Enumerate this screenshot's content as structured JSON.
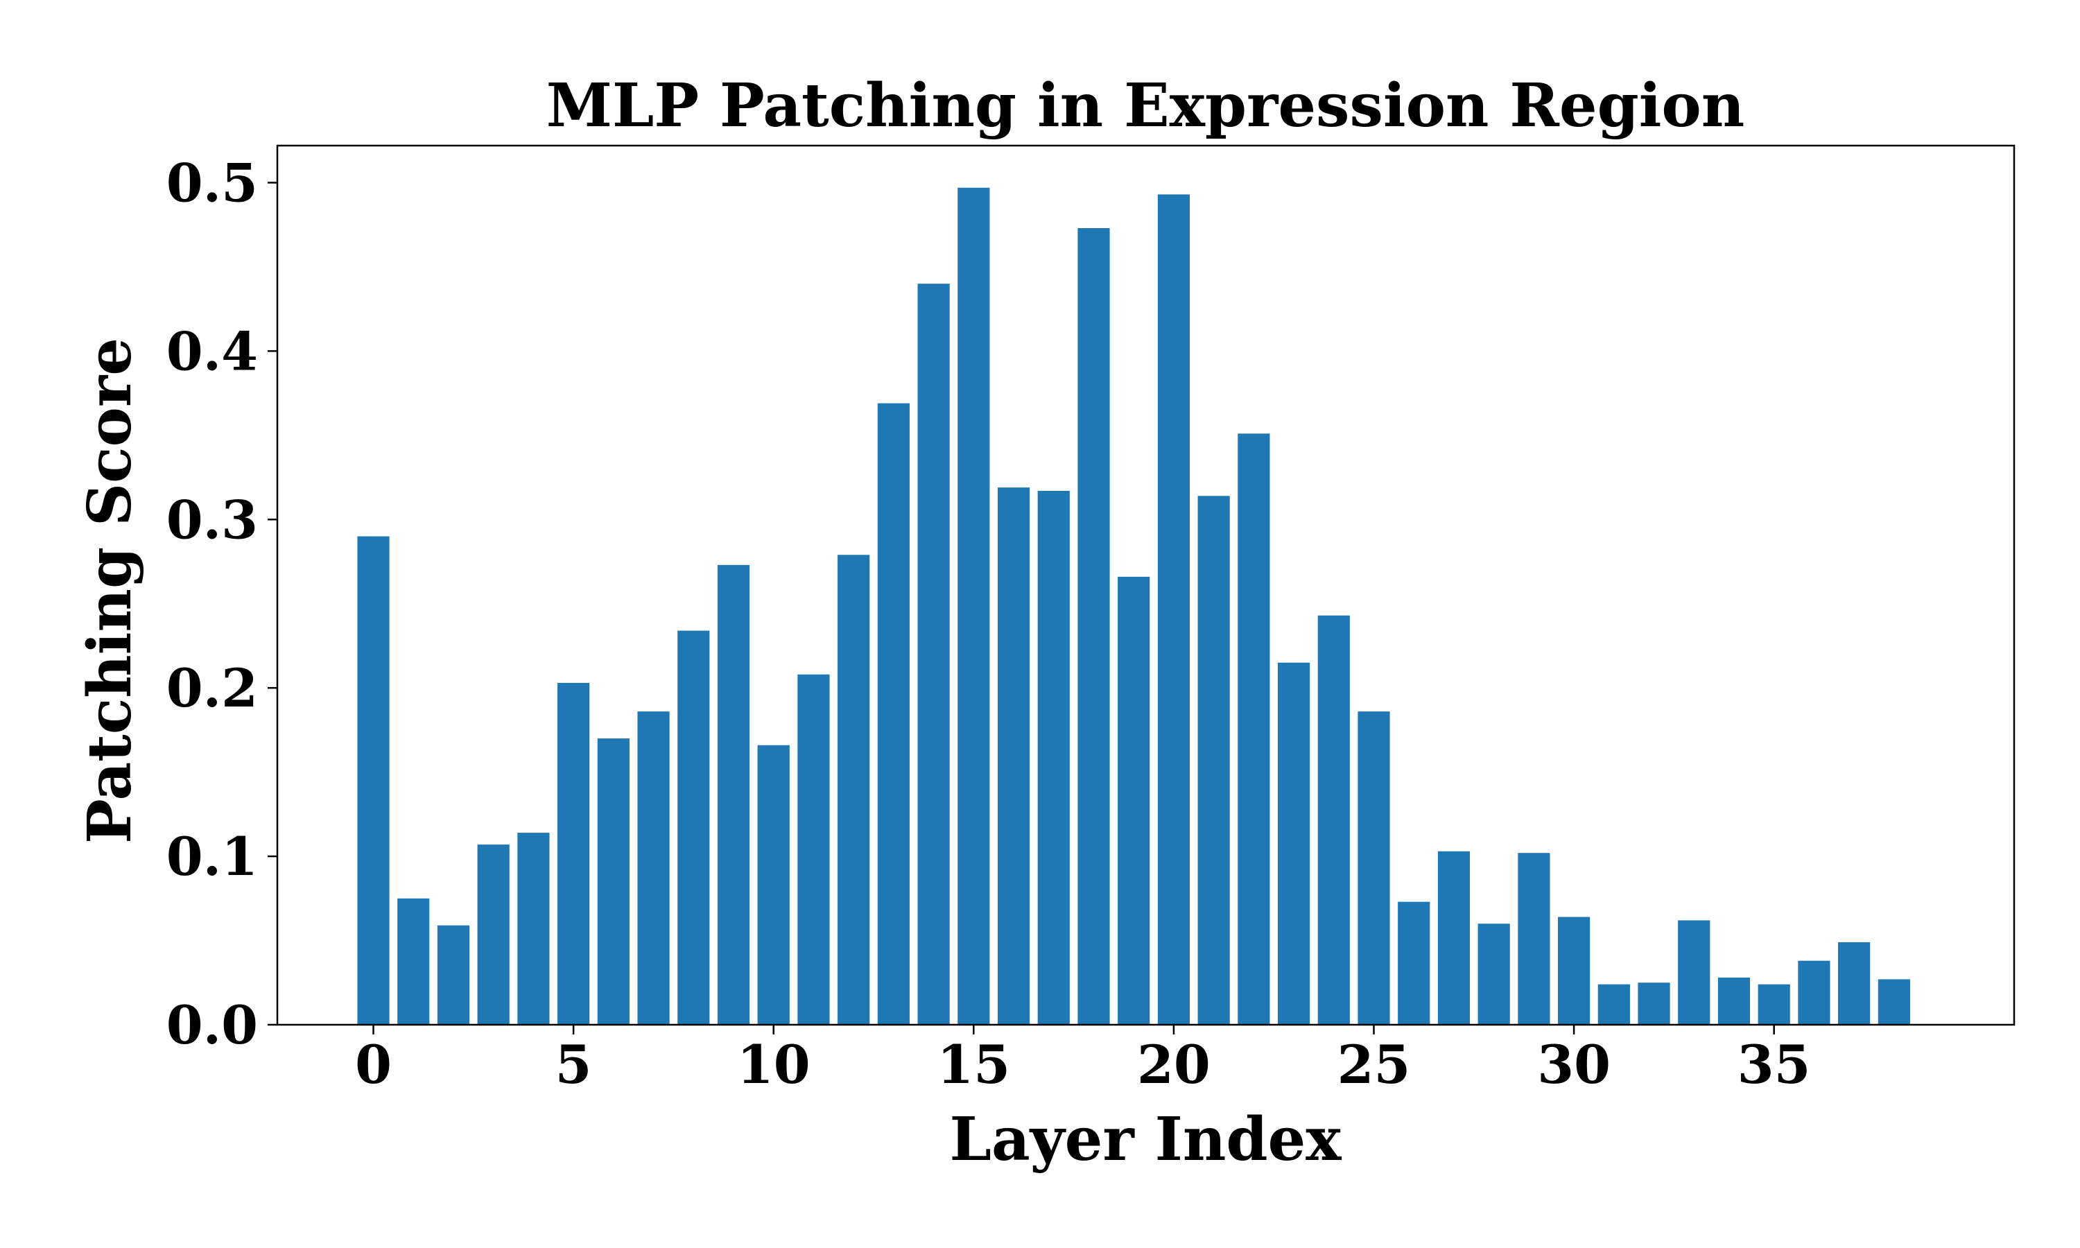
{
  "chart_data": {
    "type": "bar",
    "title": "MLP Patching in Expression Region",
    "xlabel": "Layer Index",
    "ylabel": "Patching Score",
    "bar_color": "#1f77b4",
    "x": [
      0,
      1,
      2,
      3,
      4,
      5,
      6,
      7,
      8,
      9,
      10,
      11,
      12,
      13,
      14,
      15,
      16,
      17,
      18,
      19,
      20,
      21,
      22,
      23,
      24,
      25,
      26,
      27,
      28,
      29,
      30,
      31,
      32,
      33,
      34,
      35,
      36,
      37,
      38
    ],
    "values": [
      0.29,
      0.075,
      0.059,
      0.107,
      0.114,
      0.203,
      0.17,
      0.186,
      0.234,
      0.273,
      0.166,
      0.208,
      0.279,
      0.369,
      0.44,
      0.497,
      0.319,
      0.317,
      0.473,
      0.266,
      0.493,
      0.314,
      0.351,
      0.215,
      0.243,
      0.186,
      0.073,
      0.103,
      0.06,
      0.102,
      0.064,
      0.024,
      0.025,
      0.062,
      0.028,
      0.024,
      0.038,
      0.049,
      0.027
    ],
    "xlim": [
      -2.4,
      41.0
    ],
    "ylim": [
      0.0,
      0.522
    ],
    "xticks": [
      0,
      5,
      10,
      15,
      20,
      25,
      30,
      35
    ],
    "yticks": [
      0.0,
      0.1,
      0.2,
      0.3,
      0.4,
      0.5
    ],
    "xtick_labels": [
      "0",
      "5",
      "10",
      "15",
      "20",
      "25",
      "30",
      "35"
    ],
    "ytick_labels": [
      "0.0",
      "0.1",
      "0.2",
      "0.3",
      "0.4",
      "0.5"
    ],
    "bar_width": 0.8,
    "grid": false,
    "legend": false
  }
}
